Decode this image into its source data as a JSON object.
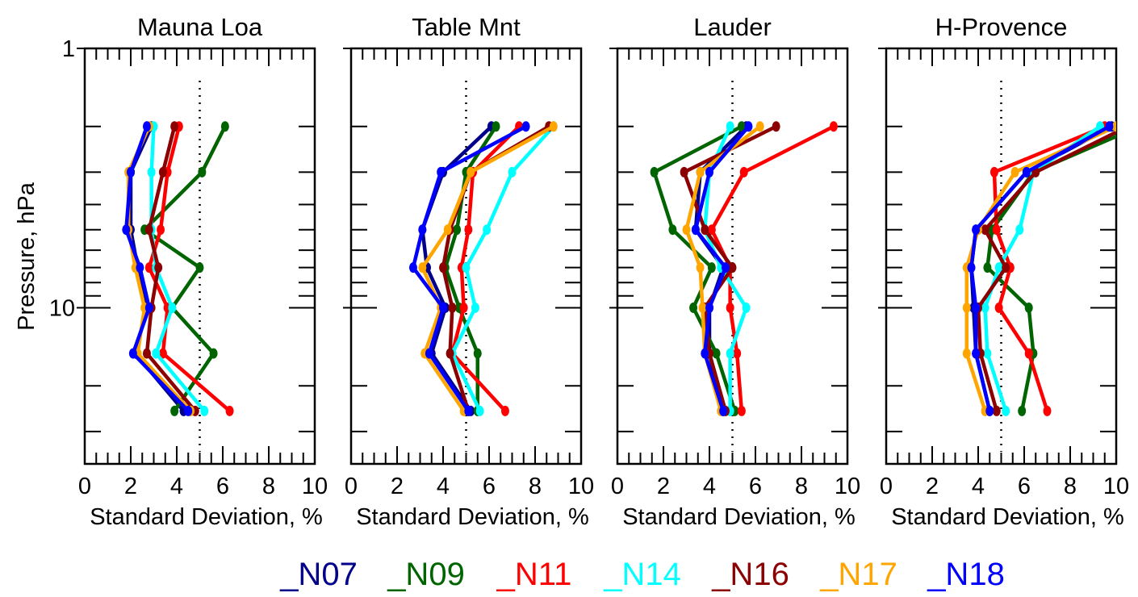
{
  "chart_data": {
    "type": "line",
    "ylabel": "Pressure, hPa",
    "y_scale": "log",
    "ylim": [
      1,
      40
    ],
    "y_major_ticks": [
      "1",
      "10"
    ],
    "x_ticks": [
      "0",
      "2",
      "4",
      "6",
      "8",
      "10"
    ],
    "xlim": [
      0,
      10
    ],
    "reference_line_x": 5,
    "series_styles": [
      {
        "name": "_N07",
        "color": "#00008B"
      },
      {
        "name": "_N09",
        "color": "#006400"
      },
      {
        "name": "_N11",
        "color": "#FF0000"
      },
      {
        "name": "_N14",
        "color": "#00FFFF"
      },
      {
        "name": "_N16",
        "color": "#8B0000"
      },
      {
        "name": "_N17",
        "color": "#FFA500"
      },
      {
        "name": "_N18",
        "color": "#0000FF"
      }
    ],
    "pressure_levels": [
      2,
      3,
      5,
      7,
      10,
      15,
      25,
      35
    ],
    "panels": [
      {
        "title": "Mauna Loa",
        "xlabel": "Standard Deviation, %",
        "series": [
          {
            "name": "_N07",
            "x": [
              2.9,
              2.0,
              2.0,
              2.3,
              2.7,
              2.2,
              4.3
            ]
          },
          {
            "name": "_N09",
            "x": [
              6.1,
              5.1,
              2.6,
              5.0,
              3.8,
              5.6,
              3.9
            ]
          },
          {
            "name": "_N11",
            "x": [
              4.1,
              3.6,
              3.3,
              2.8,
              3.6,
              3.4,
              6.3
            ]
          },
          {
            "name": "_N14",
            "x": [
              3.0,
              2.9,
              2.9,
              3.1,
              3.8,
              3.1,
              5.2
            ]
          },
          {
            "name": "_N16",
            "x": [
              3.9,
              3.4,
              2.8,
              3.2,
              2.9,
              2.7,
              4.8
            ]
          },
          {
            "name": "_N17",
            "x": [
              2.8,
              1.9,
              1.9,
              2.2,
              2.6,
              2.3,
              4.6
            ]
          },
          {
            "name": "_N18",
            "x": [
              2.7,
              2.0,
              1.8,
              2.4,
              2.8,
              2.1,
              4.5
            ]
          }
        ]
      },
      {
        "title": "Table Mnt",
        "xlabel": "Standard Deviation, %",
        "series": [
          {
            "name": "_N07",
            "x": [
              6.1,
              4.0,
              3.1,
              3.3,
              4.1,
              3.5,
              5.2
            ]
          },
          {
            "name": "_N09",
            "x": [
              6.3,
              5.0,
              4.6,
              4.1,
              4.7,
              5.5,
              5.5
            ]
          },
          {
            "name": "_N11",
            "x": [
              7.3,
              5.3,
              5.1,
              4.8,
              4.9,
              4.4,
              6.7
            ]
          },
          {
            "name": "_N14",
            "x": [
              8.8,
              7.0,
              5.9,
              5.0,
              5.4,
              4.4,
              5.6
            ]
          },
          {
            "name": "_N16",
            "x": [
              8.6,
              5.2,
              4.3,
              4.0,
              4.4,
              4.3,
              5.1
            ]
          },
          {
            "name": "_N17",
            "x": [
              8.8,
              5.2,
              4.2,
              3.1,
              3.9,
              3.2,
              4.9
            ]
          },
          {
            "name": "_N18",
            "x": [
              7.6,
              3.9,
              3.1,
              2.7,
              4.0,
              3.4,
              5.1
            ]
          }
        ]
      },
      {
        "title": "Lauder",
        "xlabel": "Standard Deviation, %",
        "series": [
          {
            "name": "_N07",
            "x": [
              5.6,
              3.6,
              3.4,
              4.6,
              4.0,
              4.0,
              4.6
            ]
          },
          {
            "name": "_N09",
            "x": [
              5.4,
              1.6,
              2.4,
              4.1,
              3.3,
              4.3,
              5.1
            ]
          },
          {
            "name": "_N11",
            "x": [
              9.4,
              5.5,
              4.1,
              4.9,
              4.9,
              5.2,
              5.4
            ]
          },
          {
            "name": "_N14",
            "x": [
              4.9,
              4.0,
              3.8,
              4.5,
              5.6,
              4.9,
              4.9
            ]
          },
          {
            "name": "_N16",
            "x": [
              6.9,
              2.9,
              3.8,
              5.0,
              3.8,
              4.0,
              4.7
            ]
          },
          {
            "name": "_N17",
            "x": [
              6.2,
              3.6,
              3.0,
              3.6,
              3.7,
              3.8,
              4.5
            ]
          },
          {
            "name": "_N18",
            "x": [
              5.7,
              4.0,
              3.4,
              4.7,
              4.0,
              3.8,
              4.6
            ]
          }
        ]
      },
      {
        "title": "H-Provence",
        "xlabel": "Standard Deviation, %",
        "series": [
          {
            "name": "_N07",
            "x": [
              9.8,
              6.1,
              3.9,
              3.7,
              3.8,
              3.9,
              4.5
            ]
          },
          {
            "name": "_N09",
            "x": [
              11.0,
              6.4,
              4.6,
              4.4,
              6.2,
              6.4,
              5.9
            ]
          },
          {
            "name": "_N11",
            "x": [
              9.5,
              4.7,
              4.8,
              5.4,
              4.9,
              6.2,
              7.0
            ]
          },
          {
            "name": "_N14",
            "x": [
              9.3,
              6.4,
              5.8,
              4.9,
              4.3,
              4.4,
              5.2
            ]
          },
          {
            "name": "_N16",
            "x": [
              10.5,
              6.5,
              4.3,
              5.2,
              4.0,
              4.1,
              4.8
            ]
          },
          {
            "name": "_N17",
            "x": [
              10.0,
              5.6,
              4.0,
              3.5,
              3.5,
              3.5,
              4.3
            ]
          },
          {
            "name": "_N18",
            "x": [
              9.7,
              6.1,
              3.9,
              3.7,
              3.9,
              3.9,
              4.5
            ]
          }
        ]
      }
    ]
  },
  "legend": {
    "items": [
      "_N07",
      "_N09",
      "_N11",
      "_N14",
      "_N16",
      "_N17",
      "_N18"
    ]
  }
}
